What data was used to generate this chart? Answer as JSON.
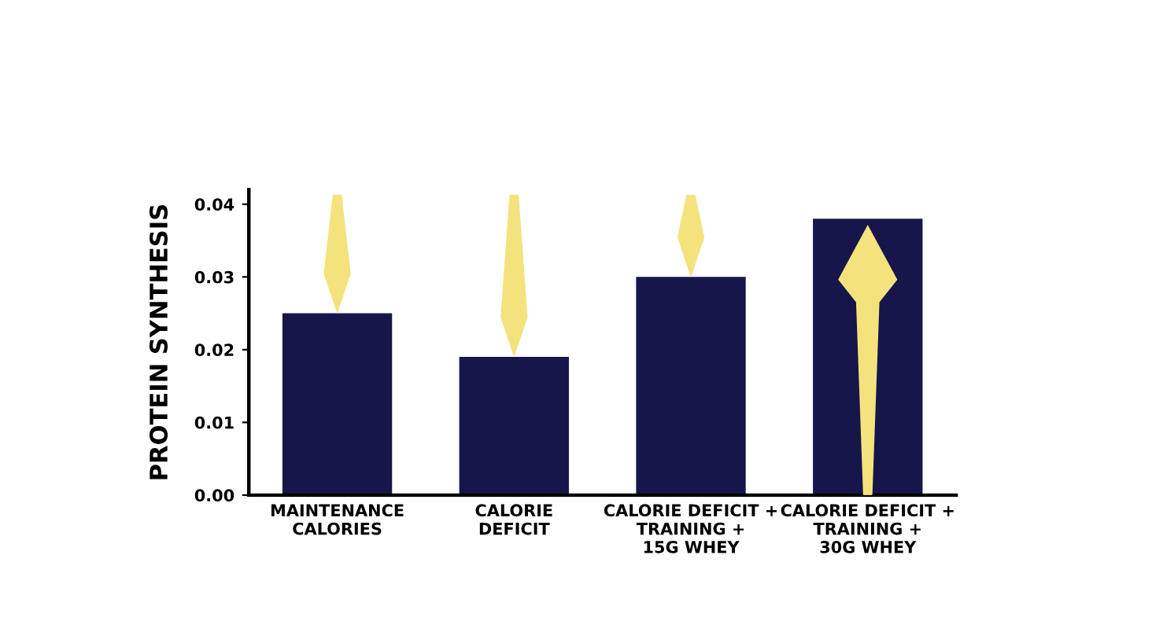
{
  "chart_data": {
    "type": "bar",
    "ylabel": "PROTEIN SYNTHESIS",
    "categories": [
      "MAINTENANCE\nCALORIES",
      "CALORIE\nDEFICIT",
      "CALORIE DEFICIT +\nTRAINING +\n15G WHEY",
      "CALORIE DEFICIT +\nTRAINING +\n30G WHEY"
    ],
    "values": [
      0.025,
      0.019,
      0.03,
      0.038
    ],
    "color": "#16164a",
    "ylim": [
      0,
      0.042
    ],
    "yticks": [
      {
        "value": 0,
        "label": "0.00"
      },
      {
        "value": 0.01,
        "label": "0.01"
      },
      {
        "value": 0.02,
        "label": "0.02"
      },
      {
        "value": 0.03,
        "label": "0.03"
      },
      {
        "value": 0.04,
        "label": "0.04"
      }
    ],
    "grid": false,
    "legend": false
  }
}
